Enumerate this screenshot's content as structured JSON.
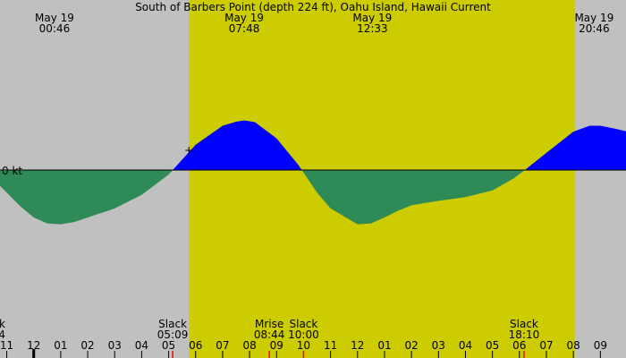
{
  "chart_data": {
    "type": "area",
    "title": "South of Barbers Point (depth 224 ft), Oahu Island, Hawaii Current",
    "y_unit_label": "0 kt",
    "x_range_hours": [
      22.75,
      45.95
    ],
    "y_range_kt": [
      -1.5,
      1.1
    ],
    "daylight_window_hours": [
      29.75,
      44.05
    ],
    "colors": {
      "background": "#c0c0c0",
      "daylight": "#cccc00",
      "flood": "#0000ff",
      "ebb": "#2e8b57",
      "tick_red": "#ff0000"
    },
    "series": [
      {
        "x": [
          22.75,
          23.5,
          24.0,
          24.5,
          25.0,
          25.5,
          26.0,
          27.0,
          28.0,
          29.0,
          29.15,
          30.0,
          31.0,
          31.5,
          31.8,
          32.2,
          33.0,
          33.8,
          34.5,
          35.0,
          36.0,
          36.5,
          37.0,
          37.5,
          38.0,
          39.0,
          40.0,
          41.0,
          41.8,
          42.2,
          43.0,
          44.0,
          44.6,
          45.0,
          45.5,
          45.95
        ],
        "y": [
          -0.35,
          -0.8,
          -1.05,
          -1.18,
          -1.2,
          -1.15,
          -1.05,
          -0.85,
          -0.55,
          -0.1,
          0.0,
          0.56,
          0.98,
          1.07,
          1.1,
          1.06,
          0.7,
          0.12,
          -0.5,
          -0.85,
          -1.2,
          -1.18,
          -1.05,
          -0.9,
          -0.78,
          -0.68,
          -0.6,
          -0.45,
          -0.18,
          0.0,
          0.38,
          0.85,
          0.98,
          0.98,
          0.92,
          0.86
        ]
      }
    ],
    "top_labels": [
      {
        "hour": 24.77,
        "line1": "May 19",
        "line2": "00:46"
      },
      {
        "hour": 31.8,
        "line1": "May 19",
        "line2": "07:48"
      },
      {
        "hour": 36.55,
        "line1": "May 19",
        "line2": "12:33"
      },
      {
        "hour": 44.77,
        "line1": "May 19",
        "line2": "20:46"
      }
    ],
    "bottom_labels": [
      {
        "hour": 23.05,
        "line1": "k",
        "line2": "4",
        "anchor": "end"
      },
      {
        "hour": 29.15,
        "line1": "Slack",
        "line2": "05:09"
      },
      {
        "hour": 32.73,
        "line1": "Mrise",
        "line2": "08:44"
      },
      {
        "hour": 34.0,
        "line1": "Slack",
        "line2": "10:00"
      },
      {
        "hour": 42.17,
        "line1": "Slack",
        "line2": "18:10"
      }
    ],
    "x_tick_labels": [
      "11",
      "12",
      "01",
      "02",
      "03",
      "04",
      "05",
      "06",
      "07",
      "08",
      "09",
      "10",
      "11",
      "12",
      "01",
      "02",
      "03",
      "04",
      "05",
      "06",
      "07",
      "08",
      "09"
    ],
    "x_tick_hours": [
      23,
      24,
      25,
      26,
      27,
      28,
      29,
      30,
      31,
      32,
      33,
      34,
      35,
      36,
      37,
      38,
      39,
      40,
      41,
      42,
      43,
      44,
      45
    ],
    "red_marker_hours": [
      29.15,
      32.73,
      34.0,
      42.17
    ],
    "black_marker_hours": [
      24.0
    ],
    "slack_marker_hours": [
      29.75
    ]
  }
}
